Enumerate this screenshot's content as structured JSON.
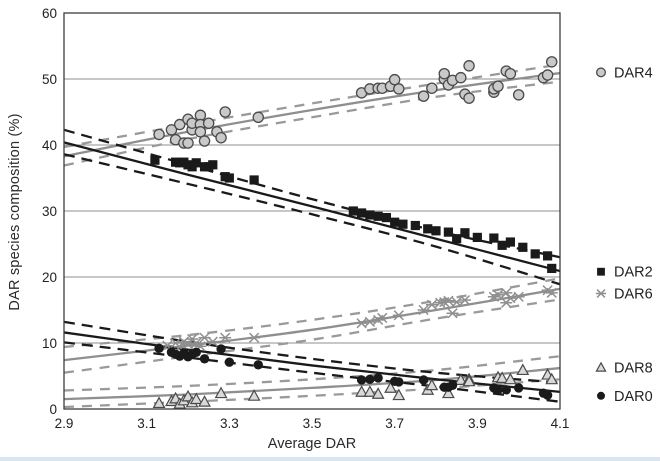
{
  "chart_data": {
    "type": "scatter",
    "xlabel": "Average DAR",
    "ylabel": "DAR species composition (%)",
    "xlim": [
      2.9,
      4.1
    ],
    "ylim": [
      0,
      60
    ],
    "grid": "horizontal",
    "legend_position": "outside-right",
    "x_ticks": [
      {
        "v": 2.9,
        "label": "2.9"
      },
      {
        "v": 3.1,
        "label": "3.1"
      },
      {
        "v": 3.3,
        "label": "3.3"
      },
      {
        "v": 3.5,
        "label": "3.5"
      },
      {
        "v": 3.7,
        "label": "3.7"
      },
      {
        "v": 3.9,
        "label": "3.9"
      },
      {
        "v": 4.1,
        "label": "4.1"
      }
    ],
    "y_ticks": [
      {
        "v": 0,
        "label": "0"
      },
      {
        "v": 10,
        "label": "10"
      },
      {
        "v": 20,
        "label": "20"
      },
      {
        "v": 30,
        "label": "30"
      },
      {
        "v": 40,
        "label": "40"
      },
      {
        "v": 50,
        "label": "50"
      },
      {
        "v": 60,
        "label": "60"
      }
    ],
    "colors": {
      "black": "#1a1a1a",
      "gray": "#8f8f8f",
      "gray_dash": "#9a9a9a",
      "gray_fill": "#c9c9c9",
      "tri_fill": "#d9d9d9",
      "marker_edge": "#4a4a4a",
      "grid": "#8f8f8f",
      "border": "#3d3d3d",
      "text": "#222222"
    },
    "series": [
      {
        "name": "DAR4",
        "marker": "circle",
        "color": "gray",
        "legend_y": 51.0,
        "fit_x": [
          2.9,
          3.2,
          3.5,
          3.8,
          4.1
        ],
        "fit_y": [
          38.3,
          42.0,
          45.3,
          48.3,
          50.9
        ],
        "upper_y": [
          39.7,
          43.1,
          46.3,
          49.3,
          52.2
        ],
        "lower_y": [
          36.9,
          40.9,
          44.2,
          47.3,
          49.6
        ],
        "points": [
          [
            3.13,
            41.6
          ],
          [
            3.16,
            42.3
          ],
          [
            3.17,
            40.8
          ],
          [
            3.18,
            43.1
          ],
          [
            3.19,
            40.3
          ],
          [
            3.2,
            43.9
          ],
          [
            3.2,
            40.3
          ],
          [
            3.21,
            42.3
          ],
          [
            3.21,
            43.3
          ],
          [
            3.23,
            44.5
          ],
          [
            3.23,
            43.1
          ],
          [
            3.23,
            42.0
          ],
          [
            3.24,
            40.6
          ],
          [
            3.25,
            43.3
          ],
          [
            3.27,
            42.0
          ],
          [
            3.28,
            41.1
          ],
          [
            3.29,
            45.0
          ],
          [
            3.37,
            44.2
          ],
          [
            3.62,
            47.9
          ],
          [
            3.64,
            48.5
          ],
          [
            3.66,
            48.6
          ],
          [
            3.67,
            48.6
          ],
          [
            3.69,
            48.9
          ],
          [
            3.7,
            49.9
          ],
          [
            3.71,
            48.5
          ],
          [
            3.77,
            47.4
          ],
          [
            3.79,
            48.6
          ],
          [
            3.82,
            50.0
          ],
          [
            3.82,
            50.8
          ],
          [
            3.83,
            49.1
          ],
          [
            3.84,
            49.8
          ],
          [
            3.86,
            50.2
          ],
          [
            3.87,
            47.7
          ],
          [
            3.88,
            47.1
          ],
          [
            3.88,
            52.0
          ],
          [
            3.94,
            48.0
          ],
          [
            3.94,
            48.5
          ],
          [
            3.95,
            48.9
          ],
          [
            3.97,
            51.2
          ],
          [
            3.98,
            50.8
          ],
          [
            4.0,
            47.6
          ],
          [
            4.06,
            50.2
          ],
          [
            4.07,
            50.6
          ],
          [
            4.08,
            52.6
          ]
        ]
      },
      {
        "name": "DAR2",
        "marker": "square",
        "color": "black",
        "legend_y": 20.8,
        "fit_x": [
          2.9,
          3.2,
          3.5,
          3.8,
          4.1
        ],
        "fit_y": [
          40.4,
          35.5,
          30.7,
          25.8,
          20.9
        ],
        "upper_y": [
          42.3,
          37.0,
          31.8,
          27.0,
          23.0
        ],
        "lower_y": [
          38.6,
          34.1,
          29.5,
          24.6,
          18.9
        ],
        "points": [
          [
            3.12,
            37.7
          ],
          [
            3.17,
            37.4
          ],
          [
            3.18,
            37.3
          ],
          [
            3.19,
            37.4
          ],
          [
            3.2,
            37.0
          ],
          [
            3.21,
            36.7
          ],
          [
            3.22,
            37.3
          ],
          [
            3.24,
            36.7
          ],
          [
            3.25,
            36.7
          ],
          [
            3.26,
            37.0
          ],
          [
            3.29,
            35.2
          ],
          [
            3.3,
            35.0
          ],
          [
            3.36,
            34.7
          ],
          [
            3.6,
            30.0
          ],
          [
            3.62,
            29.7
          ],
          [
            3.64,
            29.4
          ],
          [
            3.66,
            29.2
          ],
          [
            3.68,
            29.0
          ],
          [
            3.7,
            28.3
          ],
          [
            3.72,
            28.0
          ],
          [
            3.75,
            27.8
          ],
          [
            3.78,
            27.3
          ],
          [
            3.8,
            27.0
          ],
          [
            3.83,
            26.8
          ],
          [
            3.85,
            25.8
          ],
          [
            3.87,
            26.7
          ],
          [
            3.9,
            26.0
          ],
          [
            3.94,
            25.9
          ],
          [
            3.96,
            24.8
          ],
          [
            3.98,
            25.3
          ],
          [
            4.01,
            24.5
          ],
          [
            4.04,
            23.5
          ],
          [
            4.07,
            23.2
          ],
          [
            4.08,
            21.3
          ]
        ]
      },
      {
        "name": "DAR6",
        "marker": "star",
        "color": "gray",
        "legend_y": 17.5,
        "fit_x": [
          2.9,
          3.2,
          3.5,
          3.8,
          4.1
        ],
        "fit_y": [
          7.4,
          9.6,
          12.0,
          15.0,
          18.2
        ],
        "upper_y": [
          9.4,
          11.2,
          13.5,
          16.4,
          19.8
        ],
        "lower_y": [
          5.5,
          8.0,
          10.5,
          13.7,
          16.6
        ],
        "points": [
          [
            3.15,
            9.6
          ],
          [
            3.17,
            10.0
          ],
          [
            3.18,
            9.4
          ],
          [
            3.19,
            10.2
          ],
          [
            3.2,
            9.8
          ],
          [
            3.21,
            10.6
          ],
          [
            3.22,
            10.0
          ],
          [
            3.23,
            9.5
          ],
          [
            3.24,
            10.8
          ],
          [
            3.26,
            10.2
          ],
          [
            3.29,
            10.8
          ],
          [
            3.36,
            10.8
          ],
          [
            3.62,
            13.0
          ],
          [
            3.64,
            13.2
          ],
          [
            3.66,
            13.5
          ],
          [
            3.67,
            13.8
          ],
          [
            3.71,
            14.2
          ],
          [
            3.77,
            15.0
          ],
          [
            3.79,
            15.8
          ],
          [
            3.81,
            16.1
          ],
          [
            3.82,
            16.2
          ],
          [
            3.83,
            16.4
          ],
          [
            3.84,
            14.5
          ],
          [
            3.85,
            16.2
          ],
          [
            3.87,
            16.5
          ],
          [
            3.94,
            17.0
          ],
          [
            3.95,
            17.3
          ],
          [
            3.97,
            17.6
          ],
          [
            3.97,
            16.1
          ],
          [
            3.98,
            16.8
          ],
          [
            4.0,
            17.0
          ],
          [
            4.07,
            18.0
          ],
          [
            4.08,
            17.6
          ]
        ]
      },
      {
        "name": "DAR8",
        "marker": "triangle",
        "color": "gray",
        "legend_y": 6.3,
        "fit_x": [
          2.9,
          3.2,
          3.5,
          3.8,
          4.1
        ],
        "fit_y": [
          1.5,
          2.2,
          3.2,
          4.4,
          6.2
        ],
        "upper_y": [
          2.8,
          3.5,
          4.5,
          5.9,
          8.0
        ],
        "lower_y": [
          0.3,
          1.1,
          2.0,
          3.1,
          4.5
        ],
        "points": [
          [
            3.13,
            0.9
          ],
          [
            3.16,
            1.2
          ],
          [
            3.17,
            1.6
          ],
          [
            3.18,
            0.8
          ],
          [
            3.19,
            1.3
          ],
          [
            3.2,
            1.9
          ],
          [
            3.21,
            1.0
          ],
          [
            3.22,
            1.5
          ],
          [
            3.24,
            1.1
          ],
          [
            3.28,
            2.4
          ],
          [
            3.36,
            2.0
          ],
          [
            3.62,
            2.6
          ],
          [
            3.64,
            2.6
          ],
          [
            3.66,
            2.3
          ],
          [
            3.69,
            3.2
          ],
          [
            3.71,
            2.1
          ],
          [
            3.78,
            2.9
          ],
          [
            3.79,
            3.6
          ],
          [
            3.83,
            2.4
          ],
          [
            3.86,
            4.4
          ],
          [
            3.88,
            4.5
          ],
          [
            3.88,
            4.2
          ],
          [
            3.95,
            4.8
          ],
          [
            3.96,
            4.7
          ],
          [
            3.98,
            4.5
          ],
          [
            4.01,
            5.9
          ],
          [
            4.07,
            5.2
          ],
          [
            4.08,
            4.5
          ]
        ]
      },
      {
        "name": "DAR0",
        "marker": "dot",
        "color": "black",
        "legend_y": 2.0,
        "fit_x": [
          2.9,
          3.2,
          3.5,
          3.8,
          4.1
        ],
        "fit_y": [
          11.6,
          9.0,
          6.6,
          4.5,
          2.6
        ],
        "upper_y": [
          13.2,
          10.2,
          7.6,
          5.5,
          4.0
        ],
        "lower_y": [
          10.1,
          7.8,
          5.5,
          3.4,
          1.1
        ],
        "points": [
          [
            3.13,
            9.2
          ],
          [
            3.16,
            8.6
          ],
          [
            3.17,
            8.3
          ],
          [
            3.18,
            8.0
          ],
          [
            3.19,
            8.5
          ],
          [
            3.2,
            7.9
          ],
          [
            3.21,
            8.3
          ],
          [
            3.22,
            8.6
          ],
          [
            3.24,
            7.6
          ],
          [
            3.28,
            9.1
          ],
          [
            3.3,
            7.1
          ],
          [
            3.37,
            6.7
          ],
          [
            3.62,
            4.4
          ],
          [
            3.64,
            4.5
          ],
          [
            3.66,
            4.7
          ],
          [
            3.7,
            4.2
          ],
          [
            3.71,
            4.1
          ],
          [
            3.77,
            4.4
          ],
          [
            3.82,
            3.3
          ],
          [
            3.83,
            3.3
          ],
          [
            3.84,
            3.6
          ],
          [
            3.94,
            3.2
          ],
          [
            3.95,
            2.9
          ],
          [
            3.97,
            2.9
          ],
          [
            4.0,
            3.2
          ],
          [
            4.06,
            2.4
          ],
          [
            4.07,
            2.1
          ]
        ]
      }
    ]
  }
}
